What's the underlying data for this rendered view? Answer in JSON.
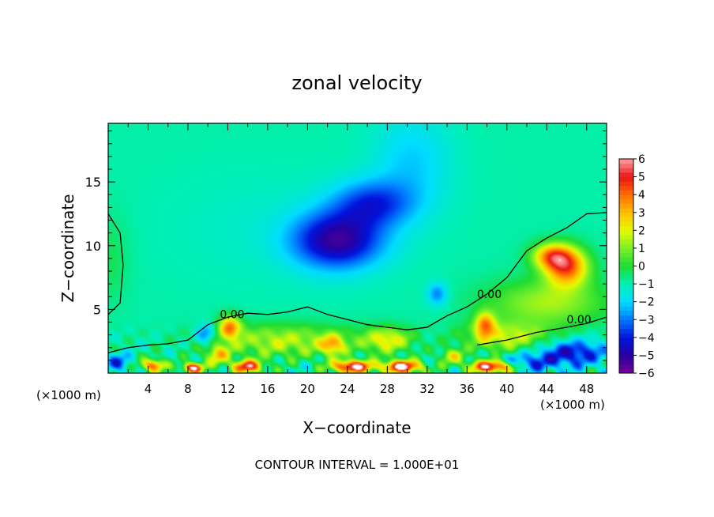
{
  "chart_data": {
    "type": "heatmap",
    "title": "zonal velocity",
    "xlabel": "X−coordinate",
    "ylabel": "Z−coordinate",
    "x_unit_left": "(×1000 m)",
    "x_unit_right": "(×1000 m)",
    "footer": "CONTOUR INTERVAL = 1.000E+01",
    "xlim": [
      0,
      50
    ],
    "ylim": [
      0,
      19.6
    ],
    "x_ticks": [
      4,
      8,
      12,
      16,
      20,
      24,
      28,
      32,
      36,
      40,
      44,
      48
    ],
    "y_ticks": [
      5,
      10,
      15
    ],
    "colorbar": {
      "range": [
        -6,
        6
      ],
      "ticks": [
        6,
        5,
        4,
        3,
        2,
        1,
        0,
        -1,
        -2,
        -3,
        -4,
        -5,
        -6
      ],
      "tick_labels": [
        "6",
        "5",
        "4",
        "3",
        "2",
        "1",
        "0",
        "−1",
        "−2",
        "−3",
        "−4",
        "−5",
        "−6"
      ]
    },
    "background_value": -0.9,
    "features": [
      {
        "x": 23.0,
        "z": 10.4,
        "value": -5.2,
        "rx": 4.5,
        "rz": 2.2
      },
      {
        "x": 26.5,
        "z": 13.3,
        "value": -3.6,
        "rx": 4.0,
        "rz": 1.8
      },
      {
        "x": 30.5,
        "z": 16.5,
        "value": -2.2,
        "rx": 4.0,
        "rz": 4.0
      },
      {
        "x": 17.0,
        "z": 11.5,
        "value": -1.3,
        "rx": 11.0,
        "rz": 4.5
      },
      {
        "x": 33.0,
        "z": 6.2,
        "value": -3.0,
        "rx": 1.0,
        "rz": 0.9
      },
      {
        "x": 9.8,
        "z": 3.0,
        "value": -3.5,
        "rx": 1.0,
        "rz": 0.8
      },
      {
        "x": 46.0,
        "z": 8.3,
        "value": 4.3,
        "rx": 2.2,
        "rz": 1.5
      },
      {
        "x": 44.5,
        "z": 9.2,
        "value": 3.2,
        "rx": 2.0,
        "rz": 1.0
      },
      {
        "x": 12.2,
        "z": 3.6,
        "value": 3.6,
        "rx": 1.1,
        "rz": 0.9
      },
      {
        "x": 37.8,
        "z": 3.8,
        "value": 3.2,
        "rx": 1.0,
        "rz": 1.0
      },
      {
        "x": 44.0,
        "z": 5.5,
        "value": 1.5,
        "rx": 6.0,
        "rz": 1.8
      },
      {
        "x": 40.0,
        "z": 2.8,
        "value": 1.8,
        "rx": 4.5,
        "rz": 1.2
      },
      {
        "x": 17.5,
        "z": 2.5,
        "value": 1.7,
        "rx": 7.0,
        "rz": 1.3
      },
      {
        "x": 22.5,
        "z": 2.2,
        "value": 2.5,
        "rx": 1.2,
        "rz": 0.8
      },
      {
        "x": 28.0,
        "z": 2.6,
        "value": 2.2,
        "rx": 2.5,
        "rz": 1.0
      },
      {
        "x": 46.5,
        "z": 1.6,
        "value": -4.6,
        "rx": 3.5,
        "rz": 1.0
      },
      {
        "x": 42.0,
        "z": 0.8,
        "value": -3.5,
        "rx": 3.0,
        "rz": 0.7
      },
      {
        "x": 24.5,
        "z": 0.5,
        "value": 6.5,
        "rx": 2.0,
        "rz": 0.5
      },
      {
        "x": 29.5,
        "z": 0.5,
        "value": 6.5,
        "rx": 2.0,
        "rz": 0.5
      },
      {
        "x": 14.0,
        "z": 0.5,
        "value": 5.5,
        "rx": 1.5,
        "rz": 0.5
      },
      {
        "x": 4.5,
        "z": 0.6,
        "value": 4.5,
        "rx": 1.2,
        "rz": 0.5
      },
      {
        "x": 38.5,
        "z": 0.5,
        "value": 6.5,
        "rx": 2.2,
        "rz": 0.5
      },
      {
        "x": 8.5,
        "z": 0.4,
        "value": 6.5,
        "rx": 1.0,
        "rz": 0.4
      },
      {
        "x": 1.0,
        "z": 0.8,
        "value": -3.5,
        "rx": 1.2,
        "rz": 0.7
      },
      {
        "x": 11.0,
        "z": 1.4,
        "value": 2.5,
        "rx": 1.2,
        "rz": 0.8
      },
      {
        "x": 34.5,
        "z": 1.3,
        "value": 2.0,
        "rx": 1.2,
        "rz": 0.6
      },
      {
        "x": 0.0,
        "z": 9.0,
        "value": -0.2,
        "rx": 2.0,
        "rz": 3.5
      }
    ],
    "contour_labels": [
      {
        "text": "0.00",
        "x": 11.2,
        "z": 4.3
      },
      {
        "text": "0.00",
        "x": 37.0,
        "z": 5.9
      },
      {
        "text": "0.00",
        "x": 46.0,
        "z": 3.9
      }
    ],
    "contour_zero_line": [
      [
        0,
        1.6
      ],
      [
        2,
        2.0
      ],
      [
        4,
        2.2
      ],
      [
        6,
        2.3
      ],
      [
        8,
        2.6
      ],
      [
        10,
        3.8
      ],
      [
        12,
        4.4
      ],
      [
        14,
        4.7
      ],
      [
        16,
        4.6
      ],
      [
        18,
        4.8
      ],
      [
        20,
        5.2
      ],
      [
        22,
        4.6
      ],
      [
        24,
        4.2
      ],
      [
        26,
        3.8
      ],
      [
        28,
        3.6
      ],
      [
        30,
        3.4
      ],
      [
        32,
        3.6
      ],
      [
        34,
        4.5
      ],
      [
        36,
        5.2
      ],
      [
        38,
        6.2
      ],
      [
        40,
        7.5
      ],
      [
        42,
        9.6
      ],
      [
        44,
        10.6
      ],
      [
        46,
        11.4
      ],
      [
        48,
        12.5
      ],
      [
        50,
        12.6
      ]
    ],
    "contour_zero_line2": [
      [
        37,
        2.2
      ],
      [
        40,
        2.6
      ],
      [
        43,
        3.2
      ],
      [
        46,
        3.6
      ],
      [
        48,
        3.9
      ],
      [
        50,
        4.4
      ]
    ],
    "contour_zero_line3": [
      [
        0,
        12.5
      ],
      [
        1.2,
        11.0
      ],
      [
        1.5,
        8.5
      ],
      [
        1.2,
        5.5
      ],
      [
        0,
        4.6
      ]
    ]
  }
}
